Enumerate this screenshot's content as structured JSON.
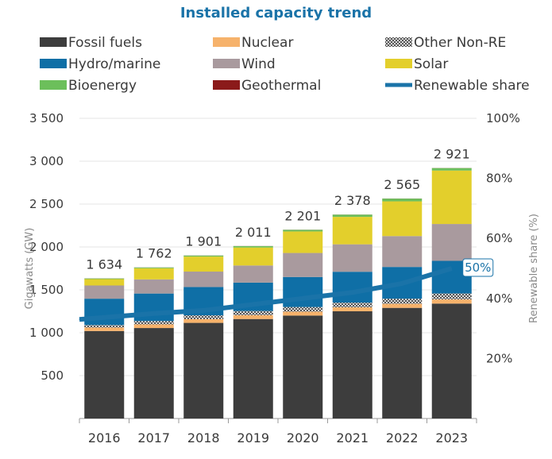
{
  "chart_data": {
    "type": "bar",
    "stacked": true,
    "title": "Installed capacity trend",
    "categories": [
      "2016",
      "2017",
      "2018",
      "2019",
      "2020",
      "2021",
      "2022",
      "2023"
    ],
    "ylabel": "Gigawatts (GW)",
    "y2label": "Renewable share (%)",
    "ylim": [
      0,
      3500
    ],
    "y2lim": [
      0,
      100
    ],
    "yticks": [
      "500",
      "1 000",
      "1 500",
      "2 000",
      "2 500",
      "3 000",
      "3 500"
    ],
    "yticks_values": [
      500,
      1000,
      1500,
      2000,
      2500,
      3000,
      3500
    ],
    "y2ticks": [
      "20%",
      "40%",
      "60%",
      "80%",
      "100%"
    ],
    "y2ticks_values": [
      20,
      40,
      60,
      80,
      100
    ],
    "series": [
      {
        "name": "Fossil fuels",
        "color": "#3d3d3d",
        "pattern": false,
        "values": [
          1020,
          1055,
          1115,
          1160,
          1200,
          1250,
          1290,
          1340
        ]
      },
      {
        "name": "Nuclear",
        "color": "#f6b26b",
        "pattern": false,
        "values": [
          40,
          42,
          43,
          44,
          45,
          46,
          47,
          48
        ]
      },
      {
        "name": "Other Non-RE",
        "color": "#7f7f7f",
        "pattern": true,
        "values": [
          30,
          40,
          45,
          50,
          55,
          55,
          60,
          70
        ]
      },
      {
        "name": "Hydro/marine",
        "color": "#0f6fa6",
        "pattern": false,
        "values": [
          307,
          320,
          330,
          330,
          350,
          360,
          370,
          380
        ]
      },
      {
        "name": "Wind",
        "color": "#a99a9e",
        "pattern": false,
        "values": [
          154,
          165,
          180,
          200,
          280,
          320,
          360,
          430
        ]
      },
      {
        "name": "Solar",
        "color": "#e3cf2c",
        "pattern": false,
        "values": [
          74,
          130,
          175,
          210,
          251,
          320,
          405,
          623
        ]
      },
      {
        "name": "Bioenergy",
        "color": "#6cbf5b",
        "pattern": false,
        "values": [
          8,
          9,
          12,
          16,
          19,
          26,
          32,
          29
        ]
      },
      {
        "name": "Geothermal",
        "color": "#8b1a1a",
        "pattern": false,
        "values": [
          1,
          1,
          1,
          1,
          1,
          1,
          1,
          1
        ]
      }
    ],
    "totals": [
      1634,
      1762,
      1901,
      2011,
      2201,
      2378,
      2565,
      2921
    ],
    "total_labels": [
      "1 634",
      "1 762",
      "1 901",
      "2 011",
      "2 201",
      "2 378",
      "2 565",
      "2 921"
    ],
    "renewable_share": {
      "name": "Renewable share",
      "color": "#1a73a8",
      "values": [
        33,
        35,
        36,
        38,
        40,
        42,
        45,
        50
      ],
      "last_label": "50%"
    },
    "legend": [
      "Fossil fuels",
      "Nuclear",
      "Other Non-RE",
      "Hydro/marine",
      "Wind",
      "Solar",
      "Bioenergy",
      "Geothermal",
      "Renewable share"
    ]
  }
}
